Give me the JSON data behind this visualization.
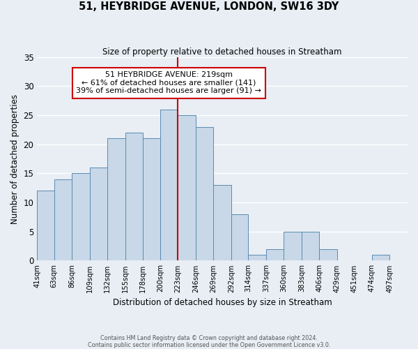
{
  "title": "51, HEYBRIDGE AVENUE, LONDON, SW16 3DY",
  "subtitle": "Size of property relative to detached houses in Streatham",
  "xlabel": "Distribution of detached houses by size in Streatham",
  "ylabel": "Number of detached properties",
  "bin_edges": [
    41,
    63,
    86,
    109,
    132,
    155,
    178,
    200,
    223,
    246,
    269,
    292,
    314,
    337,
    360,
    383,
    406,
    429,
    451,
    474,
    497,
    520
  ],
  "bin_labels": [
    "41sqm",
    "63sqm",
    "86sqm",
    "109sqm",
    "132sqm",
    "155sqm",
    "178sqm",
    "200sqm",
    "223sqm",
    "246sqm",
    "269sqm",
    "292sqm",
    "314sqm",
    "337sqm",
    "360sqm",
    "383sqm",
    "406sqm",
    "429sqm",
    "451sqm",
    "474sqm",
    "497sqm"
  ],
  "counts": [
    12,
    14,
    15,
    16,
    21,
    22,
    21,
    26,
    25,
    23,
    13,
    8,
    1,
    2,
    5,
    5,
    2,
    0,
    0,
    1,
    0
  ],
  "bar_color": "#c8d8e8",
  "bar_edge_color": "#5a8ab0",
  "reference_line_x": 223,
  "reference_line_color": "#cc0000",
  "ylim": [
    0,
    35
  ],
  "yticks": [
    0,
    5,
    10,
    15,
    20,
    25,
    30,
    35
  ],
  "annotation_title": "51 HEYBRIDGE AVENUE: 219sqm",
  "annotation_line1": "← 61% of detached houses are smaller (141)",
  "annotation_line2": "39% of semi-detached houses are larger (91) →",
  "annotation_box_color": "#ffffff",
  "annotation_box_edge": "#cc0000",
  "bg_color": "#e8eef4",
  "grid_color": "#ffffff",
  "footer_line1": "Contains HM Land Registry data © Crown copyright and database right 2024.",
  "footer_line2": "Contains public sector information licensed under the Open Government Licence v3.0."
}
